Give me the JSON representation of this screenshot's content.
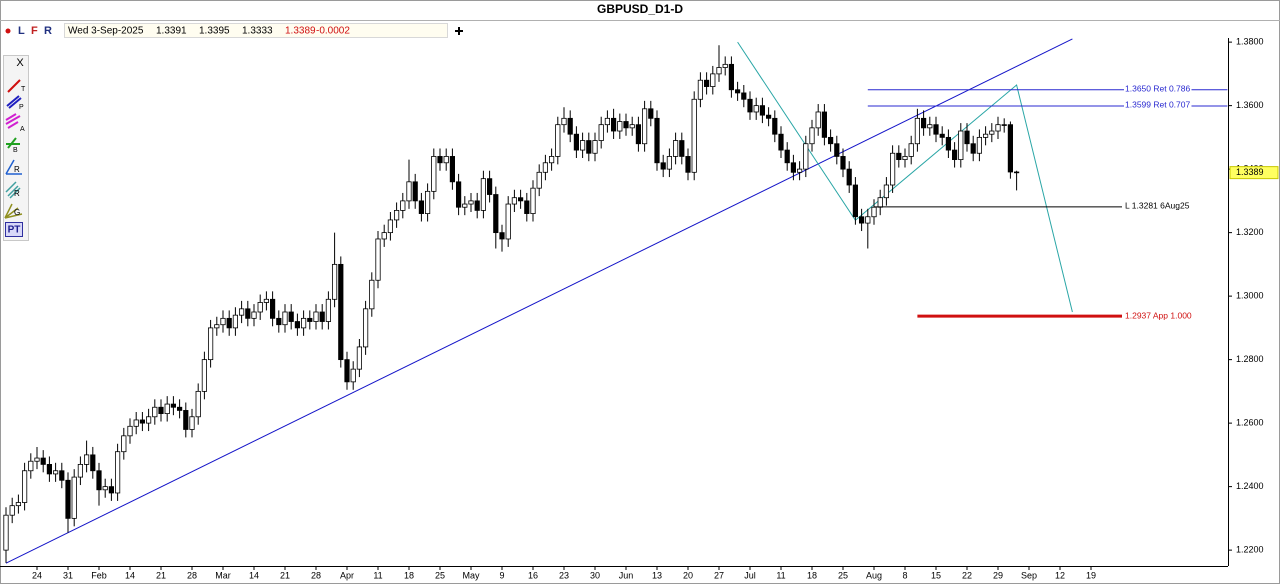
{
  "window": {
    "title": "GBPUSD_D1-D",
    "buttons": [
      "L",
      "F",
      "R"
    ],
    "tools": [
      "T",
      "P",
      "A",
      "B",
      "R",
      "R",
      "G",
      "PT"
    ],
    "close": "X"
  },
  "chart_data": {
    "type": "candlestick",
    "date": "Wed 3-Sep-2025",
    "change": -0.0002,
    "up_color": "#ffffff",
    "down_color": "#000000",
    "ylim": [
      1.215,
      1.3813
    ],
    "yticks": [
      {
        "value": 1.22,
        "label": "1.2200"
      },
      {
        "value": 1.24,
        "label": "1.2400"
      },
      {
        "value": 1.26,
        "label": "1.2600"
      },
      {
        "value": 1.28,
        "label": "1.2800"
      },
      {
        "value": 1.3,
        "label": "1.3000"
      },
      {
        "value": 1.32,
        "label": "1.3200"
      },
      {
        "value": 1.34,
        "label": "1.3400"
      },
      {
        "value": 1.36,
        "label": "1.3600"
      },
      {
        "value": 1.38,
        "label": "1.3800"
      }
    ],
    "categories": [
      null,
      null,
      null,
      null,
      null,
      "24",
      null,
      null,
      null,
      null,
      "31",
      null,
      null,
      null,
      null,
      "Feb",
      null,
      null,
      null,
      null,
      "14",
      null,
      null,
      null,
      null,
      "21",
      null,
      null,
      null,
      null,
      "28",
      null,
      null,
      null,
      null,
      "Mar",
      null,
      null,
      null,
      null,
      "14",
      null,
      null,
      null,
      null,
      "21",
      null,
      null,
      null,
      null,
      "28",
      null,
      null,
      null,
      null,
      "Apr",
      null,
      null,
      null,
      null,
      "11",
      null,
      null,
      null,
      null,
      "18",
      null,
      null,
      null,
      null,
      "25",
      null,
      null,
      null,
      null,
      "May",
      null,
      null,
      null,
      null,
      "9",
      null,
      null,
      null,
      null,
      "16",
      null,
      null,
      null,
      null,
      "23",
      null,
      null,
      null,
      null,
      "30",
      null,
      null,
      null,
      null,
      "Jun",
      null,
      null,
      null,
      null,
      "13",
      null,
      null,
      null,
      null,
      "20",
      null,
      null,
      null,
      null,
      "27",
      null,
      null,
      null,
      null,
      "Jul",
      null,
      null,
      null,
      null,
      "11",
      null,
      null,
      null,
      null,
      "18",
      null,
      null,
      null,
      null,
      "25",
      null,
      null,
      null,
      null,
      "Aug",
      null,
      null,
      null,
      null,
      "8",
      null,
      null,
      null,
      null,
      "15",
      null,
      null,
      null,
      null,
      "22",
      null,
      null,
      null,
      null,
      "29",
      null,
      null,
      null,
      null,
      "Sep",
      null,
      null,
      null,
      null,
      "12",
      null,
      null,
      null,
      null,
      "19"
    ],
    "open": [
      1.22,
      1.231,
      1.234,
      1.235,
      1.245,
      1.248,
      1.249,
      1.247,
      1.244,
      1.245,
      1.242,
      1.23,
      1.243,
      1.247,
      1.25,
      1.245,
      1.239,
      1.24,
      1.238,
      1.251,
      1.256,
      1.259,
      1.261,
      1.26,
      1.262,
      1.265,
      1.263,
      1.266,
      1.265,
      1.264,
      1.258,
      1.262,
      1.27,
      1.28,
      1.29,
      1.291,
      1.293,
      1.29,
      1.294,
      1.296,
      1.293,
      1.295,
      1.298,
      1.299,
      1.293,
      1.291,
      1.295,
      1.292,
      1.29,
      1.293,
      1.292,
      1.295,
      1.292,
      1.299,
      1.31,
      1.28,
      1.273,
      1.277,
      1.284,
      1.296,
      1.305,
      1.318,
      1.32,
      1.324,
      1.327,
      1.33,
      1.336,
      1.33,
      1.326,
      1.333,
      1.344,
      1.342,
      1.344,
      1.336,
      1.328,
      1.329,
      1.33,
      1.327,
      1.337,
      1.332,
      1.32,
      1.318,
      1.329,
      1.331,
      1.33,
      1.326,
      1.334,
      1.339,
      1.342,
      1.344,
      1.354,
      1.356,
      1.351,
      1.346,
      1.349,
      1.345,
      1.349,
      1.354,
      1.356,
      1.352,
      1.355,
      1.353,
      1.354,
      1.348,
      1.359,
      1.356,
      1.342,
      1.34,
      1.344,
      1.349,
      1.344,
      1.339,
      1.362,
      1.368,
      1.366,
      1.37,
      1.372,
      1.373,
      1.365,
      1.364,
      1.362,
      1.358,
      1.36,
      1.357,
      1.356,
      1.351,
      1.346,
      1.342,
      1.339,
      1.34,
      1.348,
      1.353,
      1.358,
      1.35,
      1.348,
      1.344,
      1.34,
      1.335,
      1.325,
      1.323,
      1.325,
      1.328,
      1.331,
      1.335,
      1.345,
      1.343,
      1.344,
      1.348,
      1.356,
      1.353,
      1.354,
      1.351,
      1.35,
      1.346,
      1.343,
      1.352,
      1.348,
      1.345,
      1.35,
      1.351,
      1.352,
      1.354,
      1.354,
      1.3391,
      null,
      null,
      null,
      null,
      null,
      null,
      null,
      null,
      null,
      null,
      null,
      null
    ],
    "high": [
      1.2335,
      1.2365,
      1.2375,
      1.2475,
      1.2505,
      1.2525,
      1.2515,
      1.2495,
      1.2475,
      1.2475,
      1.2445,
      1.2455,
      1.2495,
      1.2545,
      1.2525,
      1.2475,
      1.2425,
      1.2425,
      1.2535,
      1.2585,
      1.2615,
      1.2635,
      1.2635,
      1.2645,
      1.2675,
      1.2675,
      1.2685,
      1.2685,
      1.2675,
      1.2665,
      1.2645,
      1.2725,
      1.2825,
      1.2925,
      1.2935,
      1.2955,
      1.2955,
      1.2965,
      1.2985,
      1.2985,
      1.2975,
      1.3005,
      1.3015,
      1.3015,
      1.2955,
      1.2975,
      1.2975,
      1.2945,
      1.2955,
      1.2955,
      1.2975,
      1.2975,
      1.3015,
      1.32,
      1.3125,
      1.2825,
      1.2795,
      1.2865,
      1.2985,
      1.3075,
      1.3205,
      1.3225,
      1.3265,
      1.3295,
      1.3325,
      1.343,
      1.3385,
      1.3325,
      1.3355,
      1.3465,
      1.3465,
      1.3465,
      1.3465,
      1.3385,
      1.3315,
      1.3325,
      1.3325,
      1.3395,
      1.3395,
      1.3345,
      1.3225,
      1.3315,
      1.3335,
      1.3335,
      1.3325,
      1.3365,
      1.3415,
      1.3445,
      1.3465,
      1.3565,
      1.3595,
      1.3585,
      1.3535,
      1.3515,
      1.3515,
      1.3515,
      1.3565,
      1.3585,
      1.359,
      1.3575,
      1.3575,
      1.3565,
      1.3565,
      1.3615,
      1.3615,
      1.3585,
      1.3445,
      1.3465,
      1.3515,
      1.3515,
      1.3465,
      1.3645,
      1.3705,
      1.3705,
      1.3725,
      1.379,
      1.3755,
      1.3755,
      1.3675,
      1.3665,
      1.3645,
      1.3625,
      1.3625,
      1.3595,
      1.3585,
      1.3535,
      1.3485,
      1.3445,
      1.3425,
      1.3505,
      1.3555,
      1.3605,
      1.3605,
      1.3525,
      1.3505,
      1.3465,
      1.3425,
      1.3375,
      1.3275,
      1.3275,
      1.3305,
      1.3335,
      1.3375,
      1.3475,
      1.3475,
      1.3465,
      1.3505,
      1.359,
      1.3585,
      1.3565,
      1.3565,
      1.3535,
      1.3525,
      1.3485,
      1.3545,
      1.3545,
      1.3505,
      1.3525,
      1.3535,
      1.3545,
      1.3565,
      1.356,
      1.355,
      1.3395,
      null,
      null,
      null,
      null,
      null,
      null,
      null,
      null,
      null,
      null,
      null,
      null
    ],
    "low": [
      1.216,
      1.2285,
      1.2315,
      1.2325,
      1.2425,
      1.2455,
      1.2445,
      1.2415,
      1.2415,
      1.2395,
      1.2255,
      1.2275,
      1.2405,
      1.2445,
      1.2425,
      1.234,
      1.2365,
      1.2355,
      1.2355,
      1.2485,
      1.2535,
      1.2565,
      1.2575,
      1.2575,
      1.2595,
      1.2605,
      1.2605,
      1.2625,
      1.2615,
      1.2555,
      1.2555,
      1.2595,
      1.2675,
      1.2775,
      1.2875,
      1.2885,
      1.2875,
      1.2875,
      1.2915,
      1.2905,
      1.2905,
      1.2925,
      1.2955,
      1.2905,
      1.2885,
      1.2885,
      1.2895,
      1.2875,
      1.2875,
      1.2895,
      1.2895,
      1.2895,
      1.2895,
      1.2965,
      1.2775,
      1.2705,
      1.2705,
      1.2745,
      1.2815,
      1.2935,
      1.3025,
      1.3155,
      1.3175,
      1.3215,
      1.3245,
      1.3275,
      1.3275,
      1.3235,
      1.3235,
      1.3305,
      1.3395,
      1.3395,
      1.3335,
      1.3255,
      1.3255,
      1.3265,
      1.3245,
      1.3245,
      1.3295,
      1.315,
      1.314,
      1.3155,
      1.3265,
      1.3275,
      1.3235,
      1.3235,
      1.3315,
      1.3365,
      1.3395,
      1.3415,
      1.3515,
      1.3485,
      1.3435,
      1.3435,
      1.3425,
      1.3425,
      1.3465,
      1.3515,
      1.3495,
      1.3495,
      1.3505,
      1.3505,
      1.3455,
      1.3455,
      1.3535,
      1.3395,
      1.3375,
      1.3375,
      1.3415,
      1.3415,
      1.3365,
      1.3365,
      1.3595,
      1.3635,
      1.3635,
      1.3675,
      1.3695,
      1.3625,
      1.3615,
      1.3595,
      1.3555,
      1.3555,
      1.3545,
      1.3535,
      1.3485,
      1.3435,
      1.3395,
      1.3365,
      1.3365,
      1.3375,
      1.3455,
      1.3505,
      1.3475,
      1.3455,
      1.3415,
      1.3375,
      1.3325,
      1.3225,
      1.3205,
      1.315,
      1.3225,
      1.3255,
      1.3285,
      1.3325,
      1.3405,
      1.3405,
      1.3415,
      1.3455,
      1.3505,
      1.3505,
      1.3485,
      1.3475,
      1.3435,
      1.3405,
      1.3405,
      1.3455,
      1.3425,
      1.3425,
      1.3475,
      1.3485,
      1.3495,
      1.3515,
      1.337,
      1.3333,
      null,
      null,
      null,
      null,
      null,
      null,
      null,
      null,
      null,
      null,
      null,
      null
    ],
    "close": [
      1.231,
      1.234,
      1.235,
      1.245,
      1.248,
      1.249,
      1.247,
      1.244,
      1.245,
      1.242,
      1.23,
      1.243,
      1.247,
      1.25,
      1.245,
      1.239,
      1.24,
      1.238,
      1.251,
      1.256,
      1.259,
      1.261,
      1.26,
      1.262,
      1.265,
      1.263,
      1.266,
      1.265,
      1.264,
      1.258,
      1.262,
      1.27,
      1.28,
      1.29,
      1.291,
      1.293,
      1.29,
      1.294,
      1.296,
      1.293,
      1.295,
      1.298,
      1.299,
      1.293,
      1.291,
      1.295,
      1.292,
      1.29,
      1.293,
      1.292,
      1.295,
      1.292,
      1.299,
      1.31,
      1.28,
      1.273,
      1.277,
      1.284,
      1.296,
      1.305,
      1.318,
      1.32,
      1.324,
      1.327,
      1.33,
      1.336,
      1.33,
      1.326,
      1.333,
      1.344,
      1.342,
      1.344,
      1.336,
      1.328,
      1.329,
      1.33,
      1.327,
      1.337,
      1.332,
      1.32,
      1.318,
      1.329,
      1.331,
      1.33,
      1.326,
      1.334,
      1.339,
      1.342,
      1.344,
      1.354,
      1.356,
      1.351,
      1.346,
      1.349,
      1.345,
      1.349,
      1.354,
      1.356,
      1.352,
      1.355,
      1.353,
      1.354,
      1.348,
      1.359,
      1.356,
      1.342,
      1.34,
      1.344,
      1.349,
      1.344,
      1.339,
      1.362,
      1.368,
      1.366,
      1.37,
      1.372,
      1.373,
      1.365,
      1.364,
      1.362,
      1.358,
      1.36,
      1.357,
      1.356,
      1.351,
      1.346,
      1.342,
      1.339,
      1.34,
      1.348,
      1.353,
      1.358,
      1.35,
      1.348,
      1.344,
      1.34,
      1.335,
      1.325,
      1.323,
      1.325,
      1.328,
      1.331,
      1.335,
      1.345,
      1.343,
      1.344,
      1.348,
      1.356,
      1.353,
      1.354,
      1.351,
      1.35,
      1.346,
      1.343,
      1.352,
      1.348,
      1.345,
      1.35,
      1.351,
      1.352,
      1.354,
      1.354,
      1.3391,
      1.3389,
      null,
      null,
      null,
      null,
      null,
      null,
      null,
      null,
      null,
      null,
      null,
      null
    ],
    "trendlines": [
      {
        "x": [
          0,
          172
        ],
        "y": [
          1.2159,
          1.381
        ],
        "color": "#1414c8"
      },
      {
        "x": [
          118,
          137,
          163,
          172
        ],
        "y": [
          1.38,
          1.3239,
          1.3665,
          1.295
        ],
        "color": "#2aa6a6"
      }
    ],
    "levels": [
      {
        "price": 1.365,
        "label": "1.3650 Ret 0.786",
        "from": 139,
        "to": 197,
        "color": "#2828d0",
        "width": 1
      },
      {
        "price": 1.3599,
        "label": "1.3599 Ret 0.707",
        "from": 139,
        "to": 197,
        "color": "#2828d0",
        "width": 1
      },
      {
        "price": 1.3281,
        "label": "L 1.3281 6Aug25",
        "from": 140,
        "to": 180,
        "color": "#000000",
        "width": 1
      },
      {
        "price": 1.2937,
        "label": "1.2937 App 1.000",
        "from": 147,
        "to": 180,
        "color": "#d01010",
        "width": 3
      }
    ]
  }
}
